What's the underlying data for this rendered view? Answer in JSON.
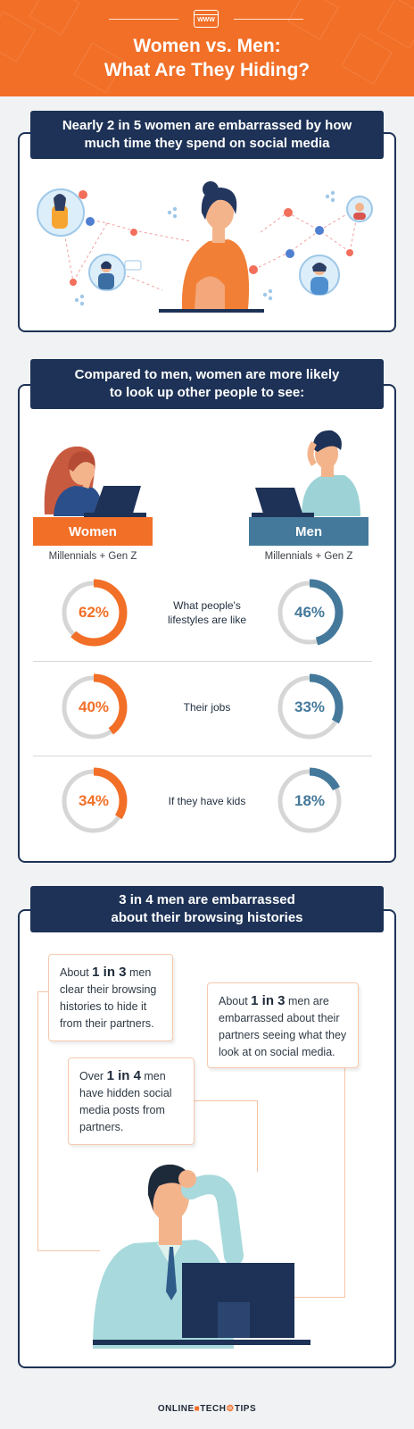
{
  "header": {
    "title": "Women vs. Men:\nWhat Are They Hiding?",
    "icon_label": "WWW",
    "bg_color": "#f26f27"
  },
  "section1": {
    "banner": "Nearly 2 in 5 women are embarrassed by how\nmuch time they spend on social media"
  },
  "section2": {
    "banner": "Compared to men, women are more likely\nto look up other people to see:",
    "women_label": "Women",
    "men_label": "Men",
    "women_sub": "Millennials + Gen Z",
    "men_sub": "Millennials + Gen Z",
    "women_color": "#f26f27",
    "men_color": "#44799b",
    "rows": [
      {
        "question": "What people's\nlifestyles are like",
        "women": "62%",
        "women_value": 62,
        "men": "46%",
        "men_value": 46
      },
      {
        "question": "Their jobs",
        "women": "40%",
        "women_value": 40,
        "men": "33%",
        "men_value": 33
      },
      {
        "question": "If they have kids",
        "women": "34%",
        "women_value": 34,
        "men": "18%",
        "men_value": 18
      }
    ]
  },
  "section3": {
    "banner": "3 in 4 men are embarrassed\nabout their browsing histories",
    "note1": {
      "pre": "About ",
      "bold": "1 in 3",
      "post": " men clear their browsing histories to hide it from their partners."
    },
    "note2": {
      "pre": "About ",
      "bold": "1 in 3",
      "post": " men are embarrassed about their partners seeing what they look at on social media."
    },
    "note3": {
      "pre": "Over ",
      "bold": "1 in 4",
      "post": " men have hidden social media posts from partners."
    }
  },
  "footer": {
    "part1": "ONLINE",
    "part2": "TECH",
    "part3": "TIPS"
  }
}
